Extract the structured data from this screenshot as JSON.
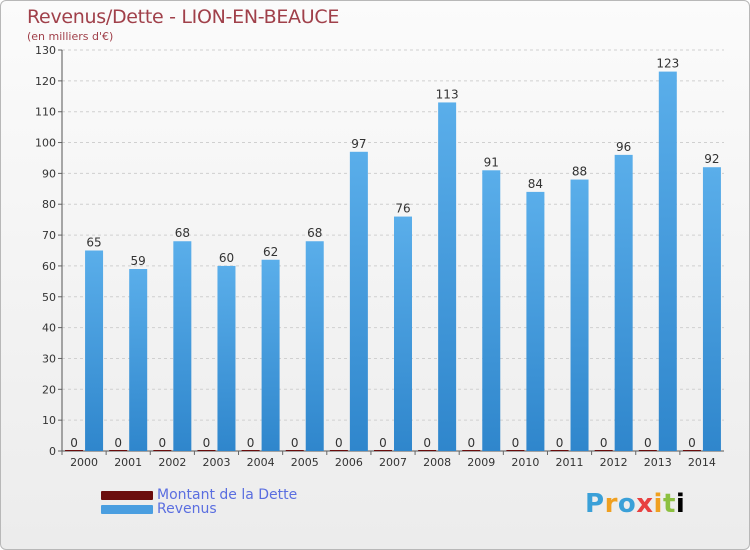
{
  "header": {
    "title": "Revenus/Dette - LION-EN-BEAUCE",
    "subtitle": "(en milliers d'€)"
  },
  "legend": [
    {
      "label": "Montant de la Dette",
      "color": "#6b0d0d"
    },
    {
      "label": "Revenus",
      "color": "#4a9ee0"
    }
  ],
  "logo": {
    "text": "Proxiti"
  },
  "colors": {
    "revenus": "#4a9ee0",
    "dette": "#6b0d0d",
    "axis": "#333333",
    "grid": "#d0d0d0"
  },
  "chart_data": {
    "type": "bar",
    "title": "Revenus/Dette - LION-EN-BEAUCE",
    "subtitle": "(en milliers d'€)",
    "xlabel": "",
    "ylabel": "",
    "categories": [
      "2000",
      "2001",
      "2002",
      "2003",
      "2004",
      "2005",
      "2006",
      "2007",
      "2008",
      "2009",
      "2010",
      "2011",
      "2012",
      "2013",
      "2014"
    ],
    "series": [
      {
        "name": "Montant de la Dette",
        "values": [
          0,
          0,
          0,
          0,
          0,
          0,
          0,
          0,
          0,
          0,
          0,
          0,
          0,
          0,
          0
        ]
      },
      {
        "name": "Revenus",
        "values": [
          65,
          59,
          68,
          60,
          62,
          68,
          97,
          76,
          113,
          91,
          84,
          88,
          96,
          123,
          92
        ]
      }
    ],
    "ylim": [
      0,
      130
    ],
    "yticks": [
      0,
      10,
      20,
      30,
      40,
      50,
      60,
      70,
      80,
      90,
      100,
      110,
      120,
      130
    ],
    "grid": true,
    "legend_position": "bottom-left"
  }
}
